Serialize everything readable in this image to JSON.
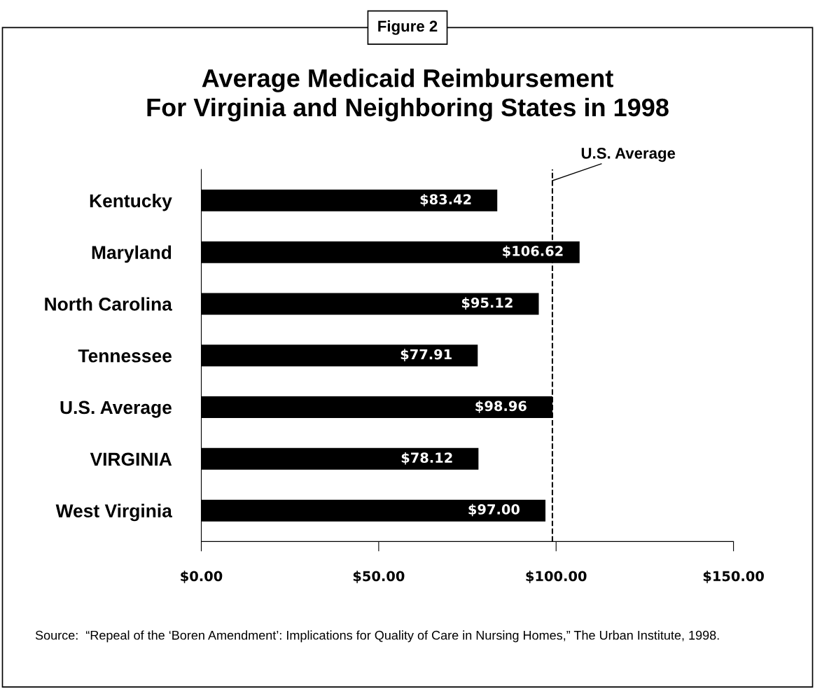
{
  "chart_data": {
    "type": "bar",
    "orientation": "horizontal",
    "title": "Average Medicaid Reimbursement\nFor Virginia and Neighboring States in 1998",
    "categories": [
      "Kentucky",
      "Maryland",
      "North Carolina",
      "Tennessee",
      "U.S. Average",
      "VIRGINIA",
      "West Virginia"
    ],
    "values": [
      83.42,
      106.62,
      95.12,
      77.91,
      98.96,
      78.12,
      97.0
    ],
    "value_labels": [
      "$83.42",
      "$106.62",
      "$95.12",
      "$77.91",
      "$98.96",
      "$78.12",
      "$97.00"
    ],
    "color": "#000000",
    "xlim": [
      0,
      150
    ],
    "xticks": [
      {
        "value": 0,
        "label": "$0.00"
      },
      {
        "value": 50,
        "label": "$50.00"
      },
      {
        "value": 100,
        "label": "$100.00"
      },
      {
        "value": 150,
        "label": "$150.00"
      }
    ],
    "ref_lines": [
      {
        "axis": "x",
        "value": 98.96,
        "label": "U.S. Average",
        "line_style": "dashed",
        "color": "#000000"
      }
    ],
    "grid": false,
    "legend": false,
    "annotations": [
      "Figure 2",
      "Source:  “Repeal of the ‘Boren Amendment’: Implications for Quality of Care in Nursing Homes,” The Urban Institute, 1998."
    ]
  }
}
